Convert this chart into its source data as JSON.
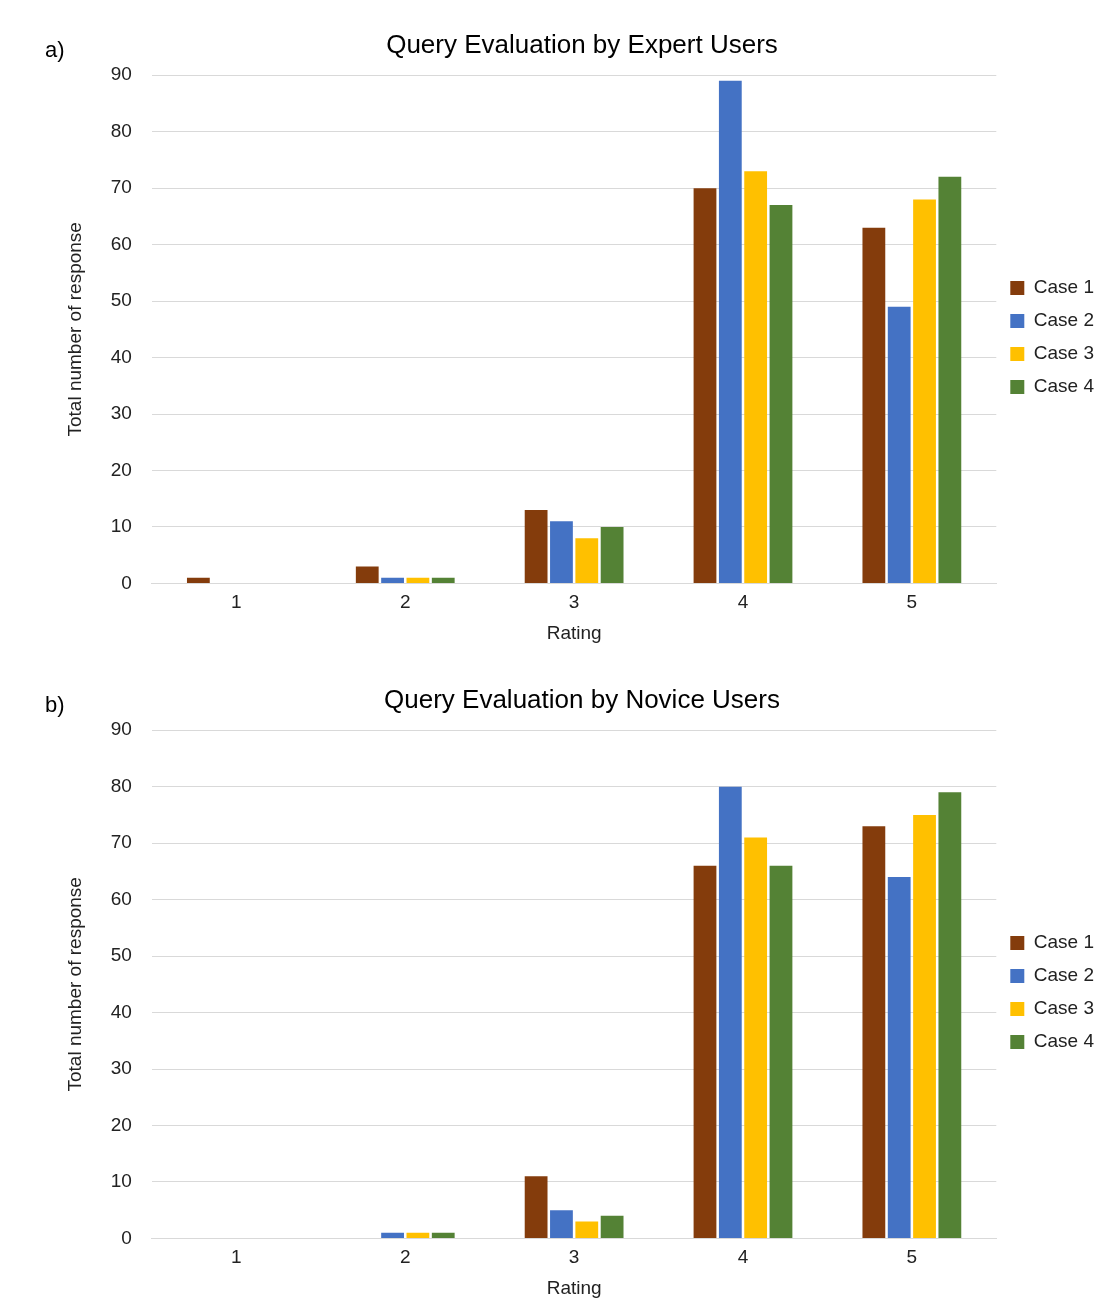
{
  "chart_data": [
    {
      "type": "bar",
      "title": "Query Evaluation by Expert Users",
      "xlabel": "Rating",
      "ylabel": "Total number of response",
      "annotations": [
        "a)"
      ],
      "categories": [
        "1",
        "2",
        "3",
        "4",
        "5"
      ],
      "series": [
        {
          "name": "Case 1",
          "color": "#843c0c",
          "values": [
            1,
            3,
            13,
            70,
            63
          ]
        },
        {
          "name": "Case 2",
          "color": "#4472c4",
          "values": [
            0,
            1,
            11,
            89,
            49
          ]
        },
        {
          "name": "Case 3",
          "color": "#ffc000",
          "values": [
            0,
            1,
            8,
            73,
            68
          ]
        },
        {
          "name": "Case 4",
          "color": "#548235",
          "values": [
            0,
            1,
            10,
            67,
            72
          ]
        }
      ],
      "ylim": [
        0,
        90
      ],
      "yticks": [
        0,
        10,
        20,
        30,
        40,
        50,
        60,
        70,
        80,
        90
      ],
      "grid": "y",
      "legend": "right"
    },
    {
      "type": "bar",
      "title": "Query Evaluation by Novice Users",
      "xlabel": "Rating",
      "ylabel": "Total number of response",
      "annotations": [
        "b)"
      ],
      "categories": [
        "1",
        "2",
        "3",
        "4",
        "5"
      ],
      "series": [
        {
          "name": "Case 1",
          "color": "#843c0c",
          "values": [
            0,
            0,
            11,
            66,
            73
          ]
        },
        {
          "name": "Case 2",
          "color": "#4472c4",
          "values": [
            0,
            1,
            5,
            80,
            64
          ]
        },
        {
          "name": "Case 3",
          "color": "#ffc000",
          "values": [
            0,
            1,
            3,
            71,
            75
          ]
        },
        {
          "name": "Case 4",
          "color": "#548235",
          "values": [
            0,
            1,
            4,
            66,
            79
          ]
        }
      ],
      "ylim": [
        0,
        90
      ],
      "yticks": [
        0,
        10,
        20,
        30,
        40,
        50,
        60,
        70,
        80,
        90
      ],
      "grid": "y",
      "legend": "right"
    }
  ]
}
